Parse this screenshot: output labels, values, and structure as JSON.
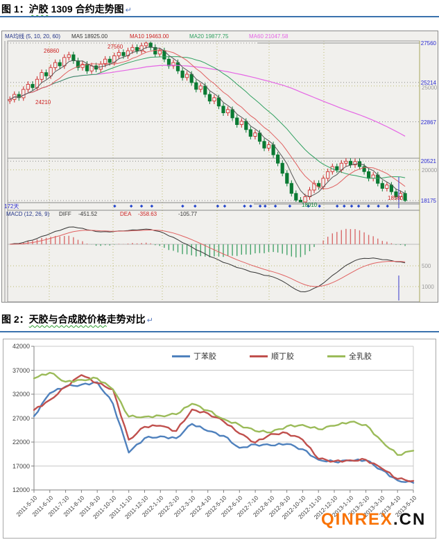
{
  "figure1": {
    "caption": {
      "prefix": "图 1：",
      "underlined": "沪胶",
      "rest": " 1309 合约走势图",
      "mark": "↵"
    },
    "chart": {
      "header": {
        "ma_group": "MA均线 (5, 10, 20, 60)",
        "ma5": "MA5 18925.00",
        "ma10": "MA10 19463.00",
        "ma20": "MA20 19877.75",
        "ma60": "MA60 21047.58"
      },
      "right_axis": [
        "27560",
        "25214",
        "22867",
        "20521",
        "18175"
      ],
      "outer_axis": [
        "25000",
        "20000"
      ],
      "macd_axis": [
        "500",
        "1000"
      ],
      "annotations": {
        "first_high": "26860",
        "peak": "27560",
        "left_price": "24210",
        "last_price": "18560",
        "support": "18010",
        "days": "172天"
      },
      "macd_header": {
        "name": "MACD (12, 26, 9)",
        "diff_label": "DIFF",
        "diff_value": "-451.52",
        "dea_label": "DEA",
        "dea_value": "-358.63",
        "bar_value": "-105.77"
      }
    }
  },
  "figure2": {
    "caption": {
      "prefix": "图 2：",
      "underlined": "天胶与合成胶价格",
      "rest": "走势对比",
      "mark": "↵"
    },
    "watermark": {
      "brand": "QINREX",
      "suffix": ".CN"
    }
  },
  "chart_data": [
    {
      "type": "candlestick",
      "title": "沪胶1309合约走势图",
      "period_label": "172天",
      "y_axis": [
        27560,
        25214,
        22867,
        20521,
        18175
      ],
      "scale_lines": [
        25000,
        20000
      ],
      "macd_scale": [
        -500,
        -1000
      ],
      "ma_values": {
        "ma5": 18925.0,
        "ma10": 19463.0,
        "ma20": 19877.75,
        "ma60": 21047.58
      },
      "macd_values": {
        "params": [
          12,
          26,
          9
        ],
        "diff": -451.52,
        "dea": -358.63,
        "bar": -105.77
      },
      "key_prices": {
        "first_high": 26860,
        "top": 27560,
        "start": 24210,
        "support": 18010,
        "last": 18560,
        "close": 18175
      },
      "closes": [
        24200,
        24500,
        24300,
        24800,
        25100,
        24900,
        25400,
        25800,
        25600,
        26100,
        26400,
        26200,
        26700,
        26860,
        26500,
        26100,
        26300,
        25900,
        26200,
        26000,
        26300,
        26600,
        26400,
        26800,
        27000,
        26800,
        27100,
        27300,
        27100,
        27400,
        27560,
        27300,
        26900,
        27100,
        26600,
        26200,
        26400,
        25900,
        25500,
        25700,
        25200,
        24800,
        25000,
        24500,
        24100,
        24300,
        23800,
        23400,
        23600,
        23100,
        22700,
        22900,
        22400,
        22000,
        22200,
        21700,
        21300,
        21500,
        20900,
        20400,
        19800,
        19200,
        18600,
        18200,
        18050,
        18400,
        18800,
        19200,
        19000,
        19500,
        19900,
        20200,
        20000,
        20400,
        20520,
        20300,
        20500,
        20200,
        19900,
        19500,
        19700,
        19200,
        18900,
        19100,
        18700,
        18400,
        18600,
        18175
      ]
    },
    {
      "type": "line",
      "categories": [
        "2011-5-10",
        "2011-6-10",
        "2011-7-10",
        "2011-8-10",
        "2011-9-10",
        "2011-10-10",
        "2011-11-10",
        "2011-12-10",
        "2012-1-10",
        "2012-2-10",
        "2012-3-10",
        "2012-4-10",
        "2012-5-10",
        "2012-6-10",
        "2012-7-10",
        "2012-8-10",
        "2012-9-10",
        "2012-10-10",
        "2012-11-10",
        "2012-12-10",
        "2013-1-10",
        "2013-2-10",
        "2013-3-10",
        "2013-4-10",
        "2013-5-10"
      ],
      "series": [
        {
          "name": "丁苯胶",
          "color": "#4F81BD",
          "values": [
            27400,
            32200,
            33600,
            34000,
            34500,
            30000,
            19800,
            22800,
            23200,
            22800,
            25800,
            24300,
            23300,
            20800,
            21500,
            21300,
            21600,
            20500,
            18300,
            17900,
            18100,
            18200,
            16200,
            14000,
            13500
          ]
        },
        {
          "name": "顺丁胶",
          "color": "#C0504D",
          "values": [
            28700,
            30800,
            33500,
            36000,
            34300,
            33000,
            22500,
            25200,
            25400,
            24300,
            28800,
            28000,
            26300,
            23800,
            21900,
            23700,
            23900,
            22500,
            18500,
            18000,
            18200,
            18300,
            16500,
            14300,
            13900
          ]
        },
        {
          "name": "全乳胶",
          "color": "#9BBB59",
          "values": [
            35300,
            36500,
            34600,
            35000,
            35300,
            33000,
            27300,
            27300,
            27500,
            27800,
            30000,
            28600,
            26800,
            25600,
            24300,
            24000,
            25300,
            25600,
            24700,
            25400,
            26200,
            25600,
            22200,
            19300,
            20200
          ]
        }
      ],
      "ylim": [
        12000,
        42000
      ],
      "ytick_step": 5000,
      "y_ticks": [
        42000,
        37000,
        32000,
        27000,
        22000,
        17000,
        12000
      ],
      "grid": "horizontal",
      "legend_position": "top"
    }
  ]
}
